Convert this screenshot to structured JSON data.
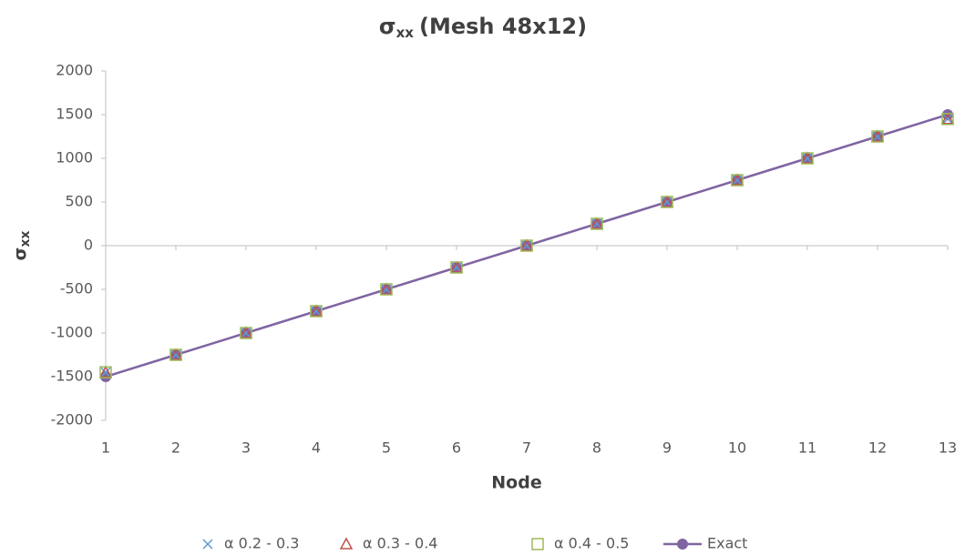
{
  "chart_data": {
    "type": "line",
    "title": "σ",
    "title_subscript": "xx",
    "title_suffix": "(Mesh 48x12)",
    "x_label": "Node",
    "y_label": "σ",
    "y_label_subscript": "xx",
    "x": [
      1,
      2,
      3,
      4,
      5,
      6,
      7,
      8,
      9,
      10,
      11,
      12,
      13
    ],
    "xlim": [
      1,
      13
    ],
    "xticks": [
      1,
      2,
      3,
      4,
      5,
      6,
      7,
      8,
      9,
      10,
      11,
      12,
      13
    ],
    "ylim": [
      -2000,
      2000
    ],
    "yticks": [
      -2000,
      -1500,
      -1000,
      -500,
      0,
      500,
      1000,
      1500,
      2000
    ],
    "grid": false,
    "legend": "bottom",
    "series": [
      {
        "name": "α 0.2 - 0.3",
        "color": "#5b9bd5",
        "marker": "x",
        "line": false,
        "values": [
          -1450,
          -1250,
          -1000,
          -750,
          -500,
          -250,
          0,
          250,
          500,
          750,
          1000,
          1250,
          1450
        ]
      },
      {
        "name": "α 0.3 - 0.4",
        "color": "#c0504d",
        "marker": "triangle",
        "line": false,
        "values": [
          -1450,
          -1250,
          -1000,
          -750,
          -500,
          -250,
          0,
          250,
          500,
          750,
          1000,
          1250,
          1450
        ]
      },
      {
        "name": "α 0.4 - 0.5",
        "color": "#9bbb59",
        "marker": "square",
        "line": false,
        "values": [
          -1450,
          -1250,
          -1000,
          -750,
          -500,
          -250,
          0,
          250,
          500,
          750,
          1000,
          1250,
          1450
        ]
      },
      {
        "name": "Exact",
        "color": "#8064a2",
        "marker": "circle",
        "line": true,
        "values": [
          -1500,
          -1250,
          -1000,
          -750,
          -500,
          -250,
          0,
          250,
          500,
          750,
          1000,
          1250,
          1500
        ]
      }
    ]
  }
}
